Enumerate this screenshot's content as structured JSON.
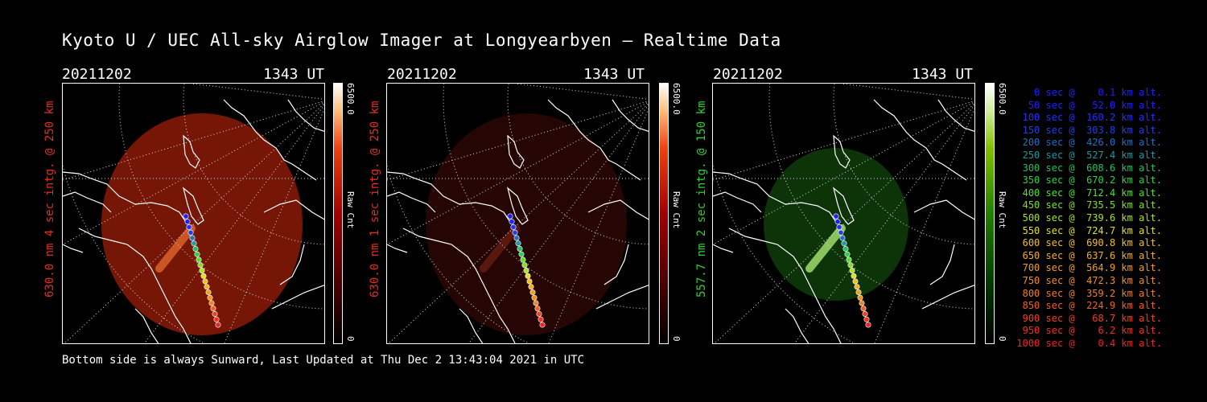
{
  "title": "Kyoto U / UEC All-sky Airglow Imager at Longyearbyen — Realtime Data",
  "footer": "Bottom side is always Sunward, Last Updated at Thu Dec  2 13:43:04 2021 in UTC",
  "panels": [
    {
      "date": "20211202",
      "time": "1343 UT",
      "ylabel": "630.0 nm 4 sec intg. @ 250 km",
      "label_color": "#e03020",
      "cbar_max": "6500.0",
      "cbar_unit": "Raw Cnt",
      "cbar_min": "0",
      "theme": "red"
    },
    {
      "date": "20211202",
      "time": "1343 UT",
      "ylabel": "630.0 nm 1 sec intg. @ 250 km",
      "label_color": "#e03020",
      "cbar_max": "6500.0",
      "cbar_unit": "Raw Cnt",
      "cbar_min": "0",
      "theme": "darkred"
    },
    {
      "date": "20211202",
      "time": "1343 UT",
      "ylabel": "557.7 nm 2 sec intg. @ 150 km",
      "label_color": "#30d030",
      "cbar_max": "6500.0",
      "cbar_unit": "Raw Cnt",
      "cbar_min": "0",
      "theme": "green"
    }
  ],
  "legend": [
    {
      "text": "   0 sec @    0.1 km alt.",
      "color": "#2020ff"
    },
    {
      "text": "  50 sec @   52.0 km alt.",
      "color": "#2020ff"
    },
    {
      "text": " 100 sec @  160.2 km alt.",
      "color": "#2030ff"
    },
    {
      "text": " 150 sec @  303.8 km alt.",
      "color": "#2040e0"
    },
    {
      "text": " 200 sec @  426.0 km alt.",
      "color": "#2070c0"
    },
    {
      "text": " 250 sec @  527.4 km alt.",
      "color": "#2098a0"
    },
    {
      "text": " 300 sec @  608.6 km alt.",
      "color": "#20c060"
    },
    {
      "text": " 350 sec @  670.2 km alt.",
      "color": "#30d040"
    },
    {
      "text": " 400 sec @  712.4 km alt.",
      "color": "#50e030"
    },
    {
      "text": " 450 sec @  735.5 km alt.",
      "color": "#80e020"
    },
    {
      "text": " 500 sec @  739.6 km alt.",
      "color": "#b0e020"
    },
    {
      "text": " 550 sec @  724.7 km alt.",
      "color": "#e0e020"
    },
    {
      "text": " 600 sec @  690.8 km alt.",
      "color": "#f0c020"
    },
    {
      "text": " 650 sec @  637.6 km alt.",
      "color": "#f0b020"
    },
    {
      "text": " 700 sec @  564.9 km alt.",
      "color": "#f0a020"
    },
    {
      "text": " 750 sec @  472.3 km alt.",
      "color": "#f09020"
    },
    {
      "text": " 800 sec @  359.2 km alt.",
      "color": "#f08020"
    },
    {
      "text": " 850 sec @  224.9 km alt.",
      "color": "#f06020"
    },
    {
      "text": " 900 sec @   68.7 km alt.",
      "color": "#f04020"
    },
    {
      "text": " 950 sec @    6.2 km alt.",
      "color": "#f03020"
    },
    {
      "text": "1000 sec @    0.4 km alt.",
      "color": "#f02020"
    }
  ]
}
